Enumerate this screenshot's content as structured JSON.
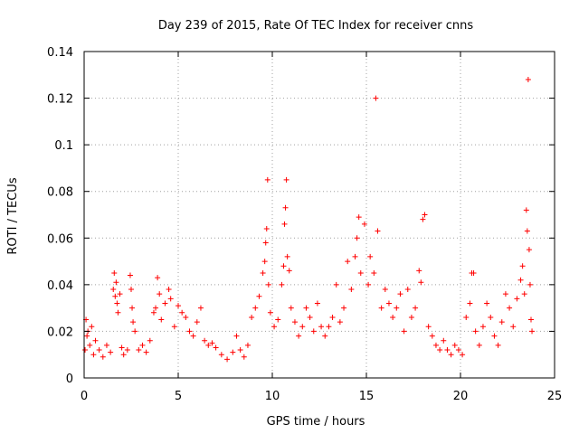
{
  "chart_data": {
    "type": "scatter",
    "title": "Day 239 of 2015, Rate Of TEC Index for receiver cnns",
    "xlabel": "GPS time / hours",
    "ylabel": "ROTI / TECUs",
    "xlim": [
      0,
      25
    ],
    "ylim": [
      0,
      0.14
    ],
    "xticks": [
      0,
      5,
      10,
      15,
      20,
      25
    ],
    "xtick_labels": [
      "0",
      "5",
      "10",
      "15",
      "20",
      "25"
    ],
    "yticks": [
      0,
      0.02,
      0.04,
      0.06,
      0.08,
      0.1,
      0.12,
      0.14
    ],
    "ytick_labels": [
      "0",
      "0.02",
      "0.04",
      "0.06",
      "0.08",
      "0.1",
      "0.12",
      "0.14"
    ],
    "grid": true,
    "marker": "+",
    "color": "#ff0000",
    "series": [
      {
        "name": "ROTI",
        "points": [
          [
            0.05,
            0.012
          ],
          [
            0.1,
            0.025
          ],
          [
            0.15,
            0.018
          ],
          [
            0.2,
            0.02
          ],
          [
            0.3,
            0.014
          ],
          [
            0.4,
            0.022
          ],
          [
            0.5,
            0.01
          ],
          [
            0.6,
            0.016
          ],
          [
            0.8,
            0.012
          ],
          [
            1.0,
            0.009
          ],
          [
            1.2,
            0.014
          ],
          [
            1.4,
            0.011
          ],
          [
            1.55,
            0.038
          ],
          [
            1.6,
            0.045
          ],
          [
            1.65,
            0.035
          ],
          [
            1.7,
            0.041
          ],
          [
            1.75,
            0.032
          ],
          [
            1.8,
            0.028
          ],
          [
            1.9,
            0.036
          ],
          [
            2.0,
            0.013
          ],
          [
            2.1,
            0.01
          ],
          [
            2.3,
            0.012
          ],
          [
            2.45,
            0.044
          ],
          [
            2.5,
            0.038
          ],
          [
            2.55,
            0.03
          ],
          [
            2.6,
            0.024
          ],
          [
            2.7,
            0.02
          ],
          [
            2.9,
            0.012
          ],
          [
            3.1,
            0.014
          ],
          [
            3.3,
            0.011
          ],
          [
            3.5,
            0.016
          ],
          [
            3.7,
            0.028
          ],
          [
            3.8,
            0.03
          ],
          [
            3.9,
            0.043
          ],
          [
            4.0,
            0.036
          ],
          [
            4.1,
            0.025
          ],
          [
            4.3,
            0.032
          ],
          [
            4.5,
            0.038
          ],
          [
            4.6,
            0.034
          ],
          [
            4.8,
            0.022
          ],
          [
            5.0,
            0.031
          ],
          [
            5.2,
            0.028
          ],
          [
            5.4,
            0.026
          ],
          [
            5.6,
            0.02
          ],
          [
            5.8,
            0.018
          ],
          [
            6.0,
            0.024
          ],
          [
            6.2,
            0.03
          ],
          [
            6.4,
            0.016
          ],
          [
            6.6,
            0.014
          ],
          [
            6.8,
            0.015
          ],
          [
            7.0,
            0.013
          ],
          [
            7.3,
            0.01
          ],
          [
            7.6,
            0.008
          ],
          [
            7.9,
            0.011
          ],
          [
            8.1,
            0.018
          ],
          [
            8.3,
            0.012
          ],
          [
            8.5,
            0.009
          ],
          [
            8.7,
            0.014
          ],
          [
            8.9,
            0.026
          ],
          [
            9.1,
            0.03
          ],
          [
            9.3,
            0.035
          ],
          [
            9.5,
            0.045
          ],
          [
            9.6,
            0.05
          ],
          [
            9.65,
            0.058
          ],
          [
            9.7,
            0.064
          ],
          [
            9.75,
            0.085
          ],
          [
            9.8,
            0.04
          ],
          [
            9.9,
            0.028
          ],
          [
            10.1,
            0.022
          ],
          [
            10.3,
            0.025
          ],
          [
            10.5,
            0.04
          ],
          [
            10.6,
            0.048
          ],
          [
            10.65,
            0.066
          ],
          [
            10.7,
            0.073
          ],
          [
            10.75,
            0.085
          ],
          [
            10.8,
            0.052
          ],
          [
            10.9,
            0.046
          ],
          [
            11.0,
            0.03
          ],
          [
            11.2,
            0.024
          ],
          [
            11.4,
            0.018
          ],
          [
            11.6,
            0.022
          ],
          [
            11.8,
            0.03
          ],
          [
            12.0,
            0.026
          ],
          [
            12.2,
            0.02
          ],
          [
            12.4,
            0.032
          ],
          [
            12.6,
            0.022
          ],
          [
            12.8,
            0.018
          ],
          [
            13.0,
            0.022
          ],
          [
            13.2,
            0.026
          ],
          [
            13.4,
            0.04
          ],
          [
            13.6,
            0.024
          ],
          [
            13.8,
            0.03
          ],
          [
            14.0,
            0.05
          ],
          [
            14.2,
            0.038
          ],
          [
            14.4,
            0.052
          ],
          [
            14.5,
            0.06
          ],
          [
            14.6,
            0.069
          ],
          [
            14.7,
            0.045
          ],
          [
            14.9,
            0.066
          ],
          [
            15.1,
            0.04
          ],
          [
            15.2,
            0.052
          ],
          [
            15.4,
            0.045
          ],
          [
            15.5,
            0.12
          ],
          [
            15.6,
            0.063
          ],
          [
            15.8,
            0.03
          ],
          [
            16.0,
            0.038
          ],
          [
            16.2,
            0.032
          ],
          [
            16.4,
            0.026
          ],
          [
            16.6,
            0.03
          ],
          [
            16.8,
            0.036
          ],
          [
            17.0,
            0.02
          ],
          [
            17.2,
            0.038
          ],
          [
            17.4,
            0.026
          ],
          [
            17.6,
            0.03
          ],
          [
            17.8,
            0.046
          ],
          [
            17.9,
            0.041
          ],
          [
            18.0,
            0.068
          ],
          [
            18.1,
            0.07
          ],
          [
            18.3,
            0.022
          ],
          [
            18.5,
            0.018
          ],
          [
            18.7,
            0.014
          ],
          [
            18.9,
            0.012
          ],
          [
            19.1,
            0.016
          ],
          [
            19.3,
            0.012
          ],
          [
            19.5,
            0.01
          ],
          [
            19.7,
            0.014
          ],
          [
            19.9,
            0.012
          ],
          [
            20.1,
            0.01
          ],
          [
            20.3,
            0.026
          ],
          [
            20.5,
            0.032
          ],
          [
            20.6,
            0.045
          ],
          [
            20.7,
            0.045
          ],
          [
            20.8,
            0.02
          ],
          [
            21.0,
            0.014
          ],
          [
            21.2,
            0.022
          ],
          [
            21.4,
            0.032
          ],
          [
            21.6,
            0.026
          ],
          [
            21.8,
            0.018
          ],
          [
            22.0,
            0.014
          ],
          [
            22.2,
            0.024
          ],
          [
            22.4,
            0.036
          ],
          [
            22.6,
            0.03
          ],
          [
            22.8,
            0.022
          ],
          [
            23.0,
            0.034
          ],
          [
            23.2,
            0.042
          ],
          [
            23.3,
            0.048
          ],
          [
            23.4,
            0.036
          ],
          [
            23.5,
            0.072
          ],
          [
            23.55,
            0.063
          ],
          [
            23.6,
            0.128
          ],
          [
            23.65,
            0.055
          ],
          [
            23.7,
            0.04
          ],
          [
            23.75,
            0.025
          ],
          [
            23.8,
            0.02
          ]
        ]
      }
    ]
  }
}
